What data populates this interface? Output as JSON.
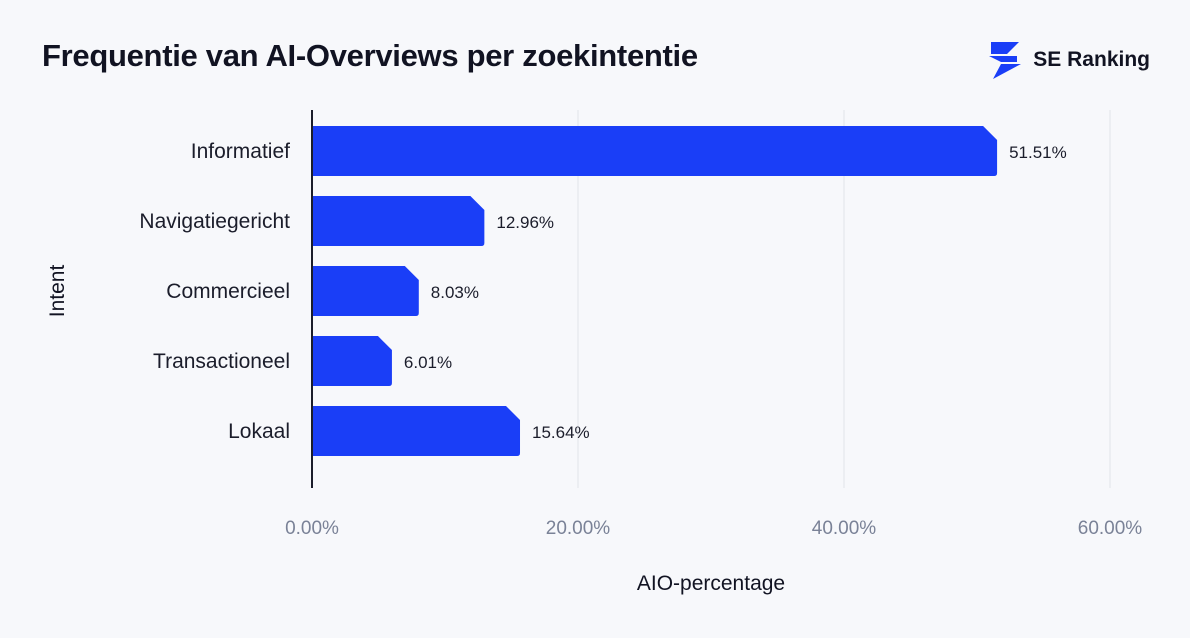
{
  "chart_data": {
    "type": "bar",
    "orientation": "horizontal",
    "title": "Frequentie van AI-Overviews per zoekintentie",
    "xlabel": "AIO-percentage",
    "ylabel": "Intent",
    "categories": [
      "Informatief",
      "Navigatiegericht",
      "Commercieel",
      "Transactioneel",
      "Lokaal"
    ],
    "values": [
      51.51,
      12.96,
      8.03,
      6.01,
      15.64
    ],
    "value_labels": [
      "51.51%",
      "12.96%",
      "8.03%",
      "6.01%",
      "15.64%"
    ],
    "xlim": [
      0,
      60
    ],
    "x_ticks": [
      "0.00%",
      "20.00%",
      "40.00%",
      "60.00%"
    ],
    "grid": "vertical",
    "bar_color": "#1a3ef7"
  },
  "brand": {
    "name": "SE Ranking",
    "icon": "se-ranking-logo-icon",
    "color": "#1a3ef7"
  }
}
